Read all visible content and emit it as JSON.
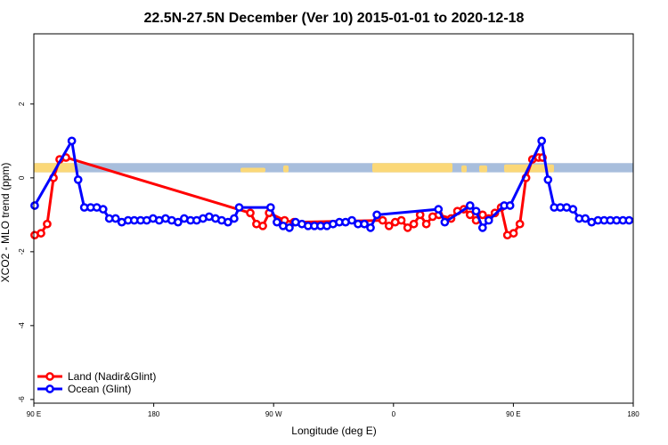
{
  "chart_data": {
    "type": "line",
    "title": "22.5N-27.5N December (Ver 10)   2015-01-01 to 2020-12-18",
    "xlabel": "Longitude (deg E)",
    "ylabel": "XCO2 - MLO trend (ppm)",
    "xlim": [
      90,
      450
    ],
    "ylim": [
      -6.1,
      3.9
    ],
    "x_ticks": [
      {
        "value": 90,
        "label": "90 E"
      },
      {
        "value": 162,
        "label": "180"
      },
      {
        "value": 234,
        "label": "90 W"
      },
      {
        "value": 306,
        "label": "0"
      },
      {
        "value": 378,
        "label": "90 E"
      },
      {
        "value": 450,
        "label": "180"
      }
    ],
    "y_ticks": [
      {
        "value": 2,
        "label": "2"
      },
      {
        "value": 0,
        "label": "0"
      },
      {
        "value": -2,
        "label": "-2"
      },
      {
        "value": -4,
        "label": "-4"
      },
      {
        "value": -6,
        "label": "-6"
      }
    ],
    "map_strip": {
      "y_min": 0.15,
      "y_max": 0.4,
      "ocean_color": "#a8bedc",
      "land_color": "#fbd878"
    },
    "legend": {
      "position": "bottom-left"
    },
    "series": [
      {
        "name": "Land (Nadir&Glint)",
        "color": "#ff0000",
        "points": [
          [
            90.5,
            -1.55
          ],
          [
            94.3,
            -1.5
          ],
          [
            98,
            -1.25
          ],
          [
            101.8,
            0.0
          ],
          [
            105.5,
            0.5
          ],
          [
            109.3,
            0.55
          ],
          [
            220,
            -0.95
          ],
          [
            223.7,
            -1.25
          ],
          [
            227.5,
            -1.3
          ],
          [
            231.3,
            -0.95
          ],
          [
            240.6,
            -1.15
          ],
          [
            246.2,
            -1.2
          ],
          [
            299.5,
            -1.15
          ],
          [
            303.3,
            -1.3
          ],
          [
            307,
            -1.2
          ],
          [
            310.7,
            -1.15
          ],
          [
            314.5,
            -1.35
          ],
          [
            318.2,
            -1.25
          ],
          [
            322,
            -1.0
          ],
          [
            325.7,
            -1.25
          ],
          [
            329.5,
            -1.05
          ],
          [
            333.2,
            -1.0
          ],
          [
            340.6,
            -1.1
          ],
          [
            344.4,
            -0.9
          ],
          [
            348.2,
            -0.85
          ],
          [
            352,
            -1.0
          ],
          [
            355.6,
            -1.15
          ],
          [
            359.5,
            -1.0
          ],
          [
            363.2,
            -1.1
          ],
          [
            366.9,
            -0.95
          ],
          [
            370.6,
            -0.8
          ],
          [
            374.4,
            -1.55
          ],
          [
            378.1,
            -1.5
          ],
          [
            381.9,
            -1.25
          ],
          [
            385.6,
            0.0
          ],
          [
            389.4,
            0.5
          ],
          [
            393.1,
            0.55
          ],
          [
            395.5,
            0.55
          ]
        ]
      },
      {
        "name": "Ocean (Glint)",
        "color": "#0000ff",
        "points": [
          [
            90.5,
            -0.75
          ],
          [
            112.8,
            1.0
          ],
          [
            116.6,
            -0.05
          ],
          [
            120.3,
            -0.8
          ],
          [
            124.1,
            -0.8
          ],
          [
            127.8,
            -0.8
          ],
          [
            131.6,
            -0.85
          ],
          [
            135.3,
            -1.1
          ],
          [
            139.1,
            -1.1
          ],
          [
            142.8,
            -1.2
          ],
          [
            146.6,
            -1.15
          ],
          [
            150.3,
            -1.15
          ],
          [
            154.1,
            -1.15
          ],
          [
            157.8,
            -1.15
          ],
          [
            161.6,
            -1.1
          ],
          [
            165.3,
            -1.15
          ],
          [
            169.1,
            -1.1
          ],
          [
            172.8,
            -1.15
          ],
          [
            176.6,
            -1.2
          ],
          [
            180.3,
            -1.1
          ],
          [
            184.1,
            -1.15
          ],
          [
            187.8,
            -1.15
          ],
          [
            191.6,
            -1.1
          ],
          [
            195.3,
            -1.05
          ],
          [
            199.1,
            -1.1
          ],
          [
            202.8,
            -1.15
          ],
          [
            206.6,
            -1.2
          ],
          [
            210.3,
            -1.1
          ],
          [
            213.3,
            -0.8
          ],
          [
            232.2,
            -0.8
          ],
          [
            236,
            -1.2
          ],
          [
            239.7,
            -1.3
          ],
          [
            243.5,
            -1.35
          ],
          [
            247.2,
            -1.2
          ],
          [
            251,
            -1.25
          ],
          [
            254.7,
            -1.3
          ],
          [
            258.5,
            -1.3
          ],
          [
            262.2,
            -1.3
          ],
          [
            266,
            -1.3
          ],
          [
            269.7,
            -1.25
          ],
          [
            273.5,
            -1.2
          ],
          [
            277.2,
            -1.2
          ],
          [
            281,
            -1.15
          ],
          [
            284.7,
            -1.25
          ],
          [
            288.5,
            -1.25
          ],
          [
            292.2,
            -1.35
          ],
          [
            296,
            -1.0
          ],
          [
            333,
            -0.85
          ],
          [
            336.8,
            -1.2
          ],
          [
            352,
            -0.75
          ],
          [
            355.6,
            -0.9
          ],
          [
            359.5,
            -1.35
          ],
          [
            363.2,
            -1.15
          ],
          [
            372.5,
            -0.75
          ],
          [
            376,
            -0.75
          ],
          [
            395,
            1.0
          ],
          [
            398.8,
            -0.05
          ],
          [
            402.5,
            -0.8
          ],
          [
            406.2,
            -0.8
          ],
          [
            410,
            -0.8
          ],
          [
            413.8,
            -0.85
          ],
          [
            417.5,
            -1.1
          ],
          [
            421.2,
            -1.1
          ],
          [
            425,
            -1.2
          ],
          [
            428.8,
            -1.15
          ],
          [
            432.5,
            -1.15
          ],
          [
            436.2,
            -1.15
          ],
          [
            440,
            -1.15
          ],
          [
            443.8,
            -1.15
          ],
          [
            447.5,
            -1.15
          ]
        ]
      }
    ]
  }
}
